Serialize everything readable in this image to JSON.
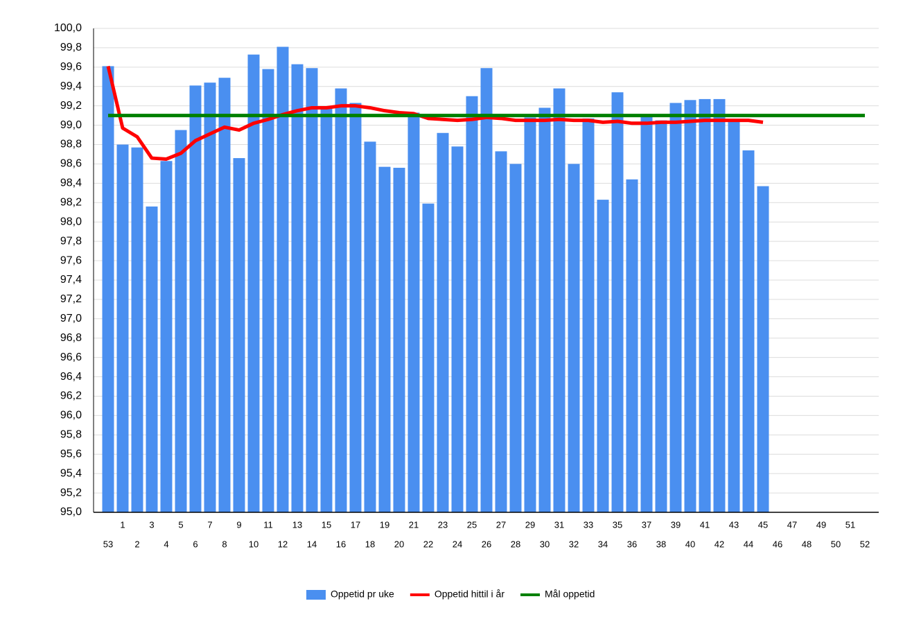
{
  "chart_data": {
    "type": "bar",
    "categories": [
      "53",
      "1",
      "2",
      "3",
      "4",
      "5",
      "6",
      "7",
      "8",
      "9",
      "10",
      "11",
      "12",
      "13",
      "14",
      "15",
      "16",
      "17",
      "18",
      "19",
      "20",
      "21",
      "22",
      "23",
      "24",
      "25",
      "26",
      "27",
      "28",
      "29",
      "30",
      "31",
      "32",
      "33",
      "34",
      "35",
      "36",
      "37",
      "38",
      "39",
      "40",
      "41",
      "42",
      "43",
      "44",
      "45",
      "46",
      "47",
      "48",
      "49",
      "50",
      "51",
      "52"
    ],
    "series": [
      {
        "name": "Oppetid pr uke",
        "type": "bar",
        "color": "#4a8ff0",
        "values": [
          99.61,
          98.8,
          98.77,
          98.16,
          98.63,
          98.95,
          99.41,
          99.44,
          99.49,
          98.66,
          99.73,
          99.58,
          99.81,
          99.63,
          99.59,
          99.18,
          99.38,
          99.23,
          98.83,
          98.57,
          98.56,
          99.13,
          98.19,
          98.92,
          98.78,
          99.3,
          99.59,
          98.73,
          98.6,
          99.08,
          99.18,
          99.38,
          98.6,
          99.07,
          98.23,
          99.34,
          98.44,
          99.09,
          99.05,
          99.23,
          99.26,
          99.27,
          99.27,
          99.05,
          98.74,
          98.37,
          null,
          null,
          null,
          null,
          null,
          null,
          null
        ]
      },
      {
        "name": "Oppetid hittil i år",
        "type": "line",
        "color": "#ff0000",
        "values": [
          99.61,
          98.97,
          98.88,
          98.66,
          98.65,
          98.71,
          98.84,
          98.91,
          98.98,
          98.95,
          99.02,
          99.06,
          99.11,
          99.15,
          99.18,
          99.18,
          99.2,
          99.2,
          99.18,
          99.15,
          99.13,
          99.12,
          99.07,
          99.06,
          99.05,
          99.06,
          99.08,
          99.07,
          99.05,
          99.05,
          99.05,
          99.06,
          99.05,
          99.05,
          99.03,
          99.04,
          99.02,
          99.02,
          99.03,
          99.03,
          99.04,
          99.05,
          99.05,
          99.05,
          99.05,
          99.03,
          null,
          null,
          null,
          null,
          null,
          null,
          null
        ]
      },
      {
        "name": "Mål oppetid",
        "type": "line",
        "color": "#008000",
        "values": [
          99.1,
          99.1,
          99.1,
          99.1,
          99.1,
          99.1,
          99.1,
          99.1,
          99.1,
          99.1,
          99.1,
          99.1,
          99.1,
          99.1,
          99.1,
          99.1,
          99.1,
          99.1,
          99.1,
          99.1,
          99.1,
          99.1,
          99.1,
          99.1,
          99.1,
          99.1,
          99.1,
          99.1,
          99.1,
          99.1,
          99.1,
          99.1,
          99.1,
          99.1,
          99.1,
          99.1,
          99.1,
          99.1,
          99.1,
          99.1,
          99.1,
          99.1,
          99.1,
          99.1,
          99.1,
          99.1,
          99.1,
          99.1,
          99.1,
          99.1,
          99.1,
          99.1,
          99.1
        ]
      }
    ],
    "ylim": [
      95,
      100
    ],
    "yticks": [
      {
        "value": 95,
        "label": "95,0"
      },
      {
        "value": 95.2,
        "label": "95,2"
      },
      {
        "value": 95.4,
        "label": "95,4"
      },
      {
        "value": 95.6,
        "label": "95,6"
      },
      {
        "value": 95.8,
        "label": "95,8"
      },
      {
        "value": 96,
        "label": "96,0"
      },
      {
        "value": 96.2,
        "label": "96,2"
      },
      {
        "value": 96.4,
        "label": "96,4"
      },
      {
        "value": 96.6,
        "label": "96,6"
      },
      {
        "value": 96.8,
        "label": "96,8"
      },
      {
        "value": 97,
        "label": "97,0"
      },
      {
        "value": 97.2,
        "label": "97,2"
      },
      {
        "value": 97.4,
        "label": "97,4"
      },
      {
        "value": 97.6,
        "label": "97,6"
      },
      {
        "value": 97.8,
        "label": "97,8"
      },
      {
        "value": 98,
        "label": "98,0"
      },
      {
        "value": 98.2,
        "label": "98,2"
      },
      {
        "value": 98.4,
        "label": "98,4"
      },
      {
        "value": 98.6,
        "label": "98,6"
      },
      {
        "value": 98.8,
        "label": "98,8"
      },
      {
        "value": 99,
        "label": "99,0"
      },
      {
        "value": 99.2,
        "label": "99,2"
      },
      {
        "value": 99.4,
        "label": "99,4"
      },
      {
        "value": 99.6,
        "label": "99,6"
      },
      {
        "value": 99.8,
        "label": "99,8"
      },
      {
        "value": 100,
        "label": "100,0"
      }
    ],
    "grid": true,
    "legend": "bottom"
  }
}
